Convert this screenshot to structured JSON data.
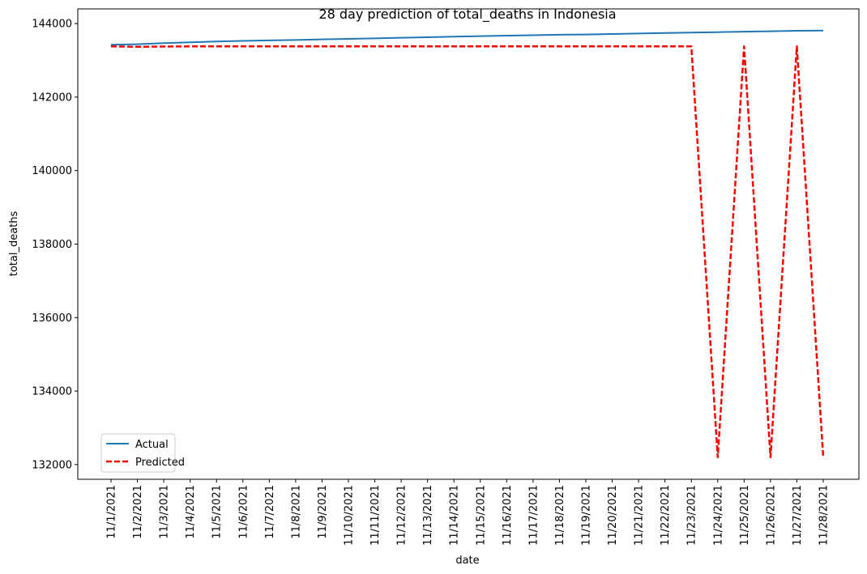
{
  "chart_data": {
    "type": "line",
    "title": "28 day prediction of total_deaths in Indonesia",
    "xlabel": "date",
    "ylabel": "total_deaths",
    "x": [
      "11/1/2021",
      "11/2/2021",
      "11/3/2021",
      "11/4/2021",
      "11/5/2021",
      "11/6/2021",
      "11/7/2021",
      "11/8/2021",
      "11/9/2021",
      "11/10/2021",
      "11/11/2021",
      "11/12/2021",
      "11/13/2021",
      "11/14/2021",
      "11/15/2021",
      "11/16/2021",
      "11/17/2021",
      "11/18/2021",
      "11/19/2021",
      "11/20/2021",
      "11/21/2021",
      "11/22/2021",
      "11/23/2021",
      "11/24/2021",
      "11/25/2021",
      "11/26/2021",
      "11/27/2021",
      "11/28/2021"
    ],
    "ylim": [
      131600,
      144400
    ],
    "yticks": [
      132000,
      134000,
      136000,
      138000,
      140000,
      142000,
      144000
    ],
    "grid": false,
    "legend_position": "lower left",
    "series": [
      {
        "name": "Actual",
        "style": "solid",
        "color": "#1f77b4",
        "values": [
          143423,
          143440,
          143468,
          143492,
          143515,
          143530,
          143542,
          143555,
          143571,
          143585,
          143598,
          143615,
          143630,
          143645,
          143660,
          143673,
          143685,
          143697,
          143704,
          143718,
          143730,
          143743,
          143756,
          143768,
          143780,
          143793,
          143805,
          143810
        ]
      },
      {
        "name": "Predicted",
        "style": "dashed",
        "color": "#ff0000",
        "values": [
          143380,
          143370,
          143375,
          143380,
          143380,
          143380,
          143380,
          143380,
          143380,
          143380,
          143380,
          143380,
          143380,
          143380,
          143380,
          143380,
          143380,
          143380,
          143380,
          143380,
          143380,
          143380,
          143380,
          132200,
          143380,
          132200,
          143380,
          132200
        ]
      }
    ]
  }
}
